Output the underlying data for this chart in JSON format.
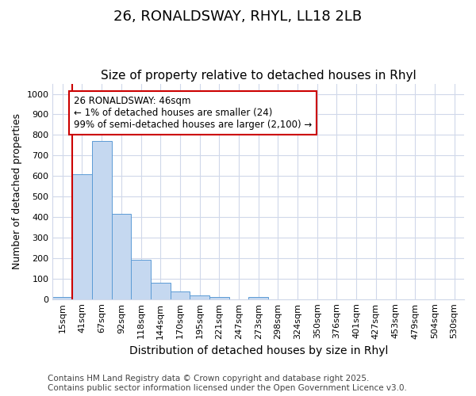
{
  "title_line1": "26, RONALDSWAY, RHYL, LL18 2LB",
  "title_line2": "Size of property relative to detached houses in Rhyl",
  "xlabel": "Distribution of detached houses by size in Rhyl",
  "ylabel": "Number of detached properties",
  "categories": [
    "15sqm",
    "41sqm",
    "67sqm",
    "92sqm",
    "118sqm",
    "144sqm",
    "170sqm",
    "195sqm",
    "221sqm",
    "247sqm",
    "273sqm",
    "298sqm",
    "324sqm",
    "350sqm",
    "376sqm",
    "401sqm",
    "427sqm",
    "453sqm",
    "479sqm",
    "504sqm",
    "530sqm"
  ],
  "values": [
    12,
    610,
    770,
    415,
    192,
    78,
    38,
    18,
    12,
    0,
    12,
    0,
    0,
    0,
    0,
    0,
    0,
    0,
    0,
    0,
    0
  ],
  "bar_color": "#c5d8f0",
  "bar_edge_color": "#5b9bd5",
  "vline_color": "#cc0000",
  "vline_position": 0.575,
  "annotation_text": "26 RONALDSWAY: 46sqm\n← 1% of detached houses are smaller (24)\n99% of semi-detached houses are larger (2,100) →",
  "annotation_box_color": "#ffffff",
  "annotation_box_edge": "#cc0000",
  "ylim": [
    0,
    1050
  ],
  "yticks": [
    0,
    100,
    200,
    300,
    400,
    500,
    600,
    700,
    800,
    900,
    1000
  ],
  "grid_color": "#d0d8ea",
  "plot_bg_color": "#ffffff",
  "fig_bg_color": "#ffffff",
  "footer": "Contains HM Land Registry data © Crown copyright and database right 2025.\nContains public sector information licensed under the Open Government Licence v3.0.",
  "footer_fontsize": 7.5,
  "title_fontsize": 13,
  "subtitle_fontsize": 11,
  "xlabel_fontsize": 10,
  "ylabel_fontsize": 9,
  "tick_fontsize": 8,
  "annotation_fontsize": 8.5
}
